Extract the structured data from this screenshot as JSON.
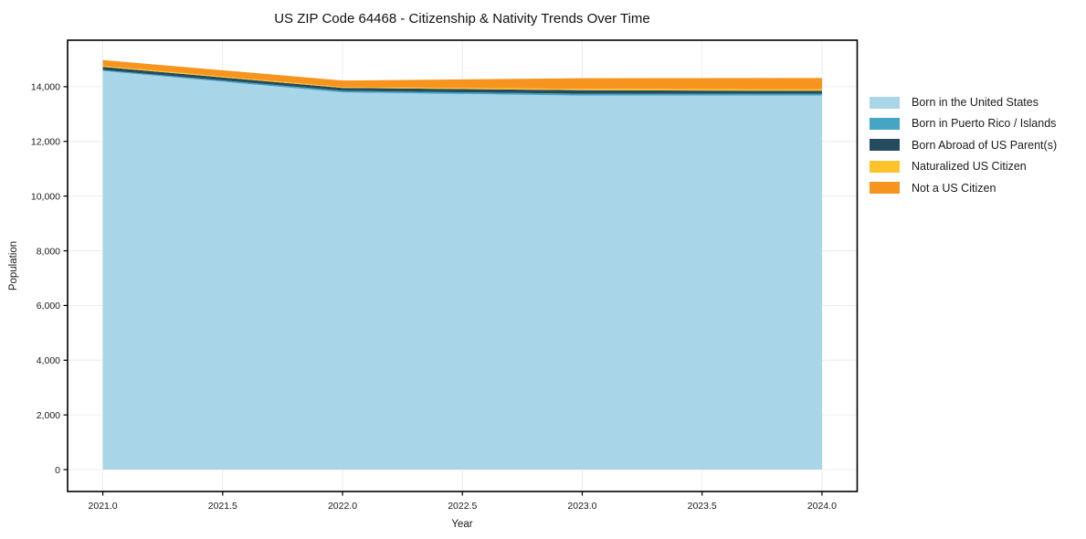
{
  "chart_data": {
    "type": "area",
    "stacked": true,
    "title": "US ZIP Code 64468 - Citizenship & Nativity Trends Over Time",
    "xlabel": "Year",
    "ylabel": "Population",
    "x": [
      2021,
      2022,
      2023,
      2024
    ],
    "series": [
      {
        "name": "Born in the United States",
        "color": "#A8D5E8",
        "values": [
          14575,
          13790,
          13675,
          13680
        ]
      },
      {
        "name": "Born in Puerto Rico / Islands",
        "color": "#44A5C4",
        "values": [
          35,
          60,
          65,
          65
        ]
      },
      {
        "name": "Born Abroad of US Parent(s)",
        "color": "#254B5F",
        "values": [
          115,
          105,
          130,
          100
        ]
      },
      {
        "name": "Naturalized US Citizen",
        "color": "#FCC32D",
        "values": [
          35,
          35,
          50,
          65
        ]
      },
      {
        "name": "Not a US Citizen",
        "color": "#F7941E",
        "values": [
          215,
          235,
          390,
          410
        ]
      }
    ],
    "xticks": [
      2021.0,
      2021.5,
      2022.0,
      2022.5,
      2023.0,
      2023.5,
      2024.0
    ],
    "xtick_labels": [
      "2021.0",
      "2021.5",
      "2022.0",
      "2022.5",
      "2023.0",
      "2023.5",
      "2024.0"
    ],
    "yticks": [
      0,
      2000,
      4000,
      6000,
      8000,
      10000,
      12000,
      14000
    ],
    "ytick_labels": [
      "0",
      "2,000",
      "4,000",
      "6,000",
      "8,000",
      "10,000",
      "12,000",
      "14,000"
    ],
    "xlim": [
      2020.853,
      2024.147
    ],
    "ylim": [
      -800,
      15700
    ],
    "grid": true,
    "legend_position": "right",
    "colors": {
      "background": "#ffffff",
      "grid": "#ececec",
      "spine": "#000000",
      "tick_text": "#1a1a1a",
      "title_text": "#111111"
    }
  }
}
